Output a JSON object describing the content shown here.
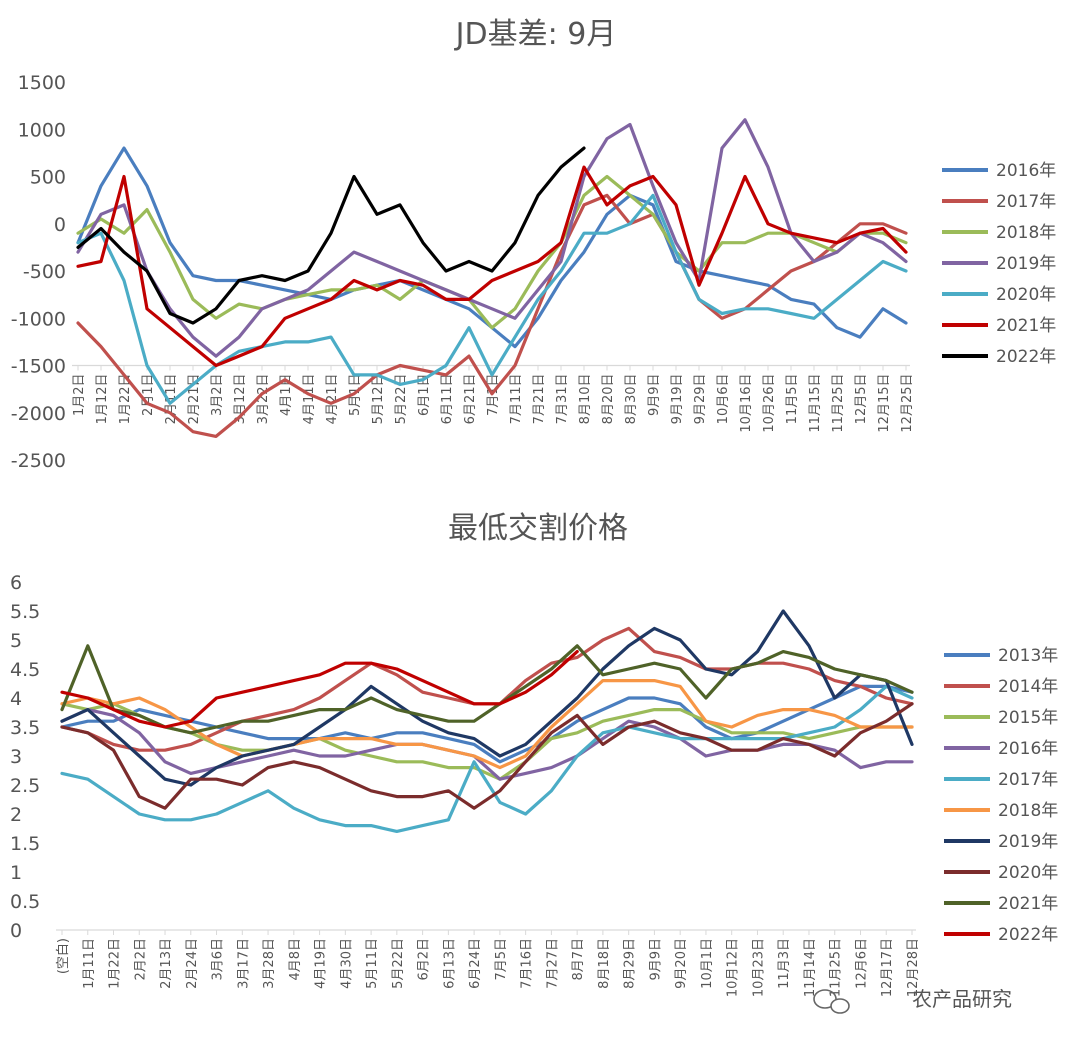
{
  "watermark": "农产品研究",
  "chart_data": [
    {
      "type": "line",
      "title": "JD基差: 9月",
      "xlabel": "",
      "ylabel": "",
      "ylim": [
        -2500,
        1500
      ],
      "yticks": [
        1500,
        1000,
        500,
        0,
        -500,
        -1000,
        -1500,
        -2000,
        -2500
      ],
      "baseline": -1500,
      "x_ticks": [
        "1月2日",
        "1月12日",
        "1月22日",
        "2月1日",
        "2月11日",
        "2月21日",
        "3月2日",
        "3月12日",
        "3月22日",
        "4月1日",
        "4月11日",
        "4月21日",
        "5月1日",
        "5月12日",
        "5月22日",
        "6月1日",
        "6月11日",
        "6月21日",
        "7月1日",
        "7月11日",
        "7月21日",
        "7月31日",
        "8月10日",
        "8月20日",
        "8月30日",
        "9月9日",
        "9月19日",
        "9月29日",
        "10月6日",
        "10月16日",
        "10月26日",
        "11月5日",
        "11月15日",
        "11月25日",
        "12月5日",
        "12月15日",
        "12月25日"
      ],
      "legend_position": "right",
      "series": [
        {
          "name": "2016年",
          "color": "#4a7ebf",
          "values": [
            -200,
            400,
            800,
            400,
            -200,
            -550,
            -600,
            -600,
            -650,
            -700,
            -750,
            -800,
            -700,
            -650,
            -600,
            -700,
            -800,
            -900,
            -1100,
            -1300,
            -1000,
            -600,
            -300,
            100,
            300,
            200,
            -400,
            -500,
            -550,
            -600,
            -650,
            -800,
            -850,
            -1100,
            -1200,
            -900,
            -1050
          ]
        },
        {
          "name": "2017年",
          "color": "#c0504d",
          "values": [
            -1050,
            -1300,
            -1600,
            -1900,
            -2000,
            -2200,
            -2250,
            -2050,
            -1800,
            -1650,
            -1800,
            -1900,
            -1800,
            -1600,
            -1500,
            -1550,
            -1600,
            -1400,
            -1800,
            -1500,
            -900,
            -300,
            200,
            300,
            0,
            100,
            -300,
            -800,
            -1000,
            -900,
            -700,
            -500,
            -400,
            -200,
            0,
            0,
            -100
          ]
        },
        {
          "name": "2018年",
          "color": "#9bbb59",
          "values": [
            -100,
            50,
            -100,
            150,
            -300,
            -800,
            -1000,
            -850,
            -900,
            -800,
            -750,
            -700,
            -700,
            -650,
            -800,
            -600,
            -700,
            -800,
            -1100,
            -900,
            -500,
            -200,
            300,
            500,
            300,
            100,
            -300,
            -500,
            -200,
            -200,
            -100,
            -100,
            -200,
            -300,
            -100,
            -100,
            -200
          ]
        },
        {
          "name": "2019年",
          "color": "#8064a2",
          "values": [
            -300,
            100,
            200,
            -500,
            -900,
            -1200,
            -1400,
            -1200,
            -900,
            -800,
            -700,
            -500,
            -300,
            -400,
            -500,
            -600,
            -700,
            -800,
            -900,
            -1000,
            -700,
            -400,
            500,
            900,
            1050,
            400,
            -200,
            -600,
            800,
            1100,
            600,
            -100,
            -400,
            -300,
            -100,
            -200,
            -400
          ]
        },
        {
          "name": "2020年",
          "color": "#4bacc6",
          "values": [
            -200,
            -100,
            -600,
            -1500,
            -1900,
            -1700,
            -1500,
            -1350,
            -1300,
            -1250,
            -1250,
            -1200,
            -1600,
            -1600,
            -1700,
            -1650,
            -1500,
            -1100,
            -1600,
            -1200,
            -800,
            -500,
            -100,
            -100,
            0,
            300,
            -300,
            -800,
            -950,
            -900,
            -900,
            -950,
            -1000,
            -800,
            -600,
            -400,
            -500
          ]
        },
        {
          "name": "2021年",
          "color": "#c00000",
          "values": [
            -450,
            -400,
            500,
            -900,
            -1100,
            -1300,
            -1500,
            -1400,
            -1300,
            -1000,
            -900,
            -800,
            -600,
            -700,
            -600,
            -650,
            -800,
            -800,
            -600,
            -500,
            -400,
            -200,
            600,
            200,
            400,
            500,
            200,
            -650,
            -100,
            500,
            0,
            -100,
            -150,
            -200,
            -100,
            -50,
            -300
          ]
        },
        {
          "name": "2022年",
          "color": "#000000",
          "values": [
            -250,
            -50,
            -300,
            -500,
            -950,
            -1050,
            -900,
            -600,
            -550,
            -600,
            -500,
            -100,
            500,
            100,
            200,
            -200,
            -500,
            -400,
            -500,
            -200,
            300,
            600,
            800
          ]
        }
      ]
    },
    {
      "type": "line",
      "title": "最低交割价格",
      "xlabel": "",
      "ylabel": "",
      "ylim": [
        0,
        6
      ],
      "yticks": [
        6,
        5.5,
        5,
        4.5,
        4,
        3.5,
        3,
        2.5,
        2,
        1.5,
        1,
        0.5,
        0
      ],
      "x_ticks": [
        "(空白)",
        "1月11日",
        "1月22日",
        "2月2日",
        "2月13日",
        "2月24日",
        "3月6日",
        "3月17日",
        "3月28日",
        "4月8日",
        "4月19日",
        "4月30日",
        "5月11日",
        "5月22日",
        "6月2日",
        "6月13日",
        "6月24日",
        "7月5日",
        "7月16日",
        "7月27日",
        "8月7日",
        "8月18日",
        "8月29日",
        "9月9日",
        "9月20日",
        "10月1日",
        "10月12日",
        "10月23日",
        "11月3日",
        "11月14日",
        "11月25日",
        "12月6日",
        "12月17日",
        "12月28日"
      ],
      "legend_position": "right",
      "series": [
        {
          "name": "2013年",
          "color": "#4a7ebf",
          "values": [
            3.5,
            3.6,
            3.6,
            3.8,
            3.7,
            3.6,
            3.5,
            3.4,
            3.3,
            3.3,
            3.3,
            3.4,
            3.3,
            3.4,
            3.4,
            3.3,
            3.2,
            2.9,
            3.1,
            3.3,
            3.6,
            3.8,
            4.0,
            4.0,
            3.9,
            3.5,
            3.3,
            3.4,
            3.6,
            3.8,
            4.0,
            4.2,
            4.2,
            4.1
          ]
        },
        {
          "name": "2014年",
          "color": "#c0504d",
          "values": [
            3.5,
            3.4,
            3.2,
            3.1,
            3.1,
            3.2,
            3.4,
            3.6,
            3.7,
            3.8,
            4.0,
            4.3,
            4.6,
            4.4,
            4.1,
            4.0,
            3.9,
            3.9,
            4.3,
            4.6,
            4.7,
            5.0,
            5.2,
            4.8,
            4.7,
            4.5,
            4.5,
            4.6,
            4.6,
            4.5,
            4.3,
            4.2,
            4.0,
            3.9
          ]
        },
        {
          "name": "2015年",
          "color": "#9bbb59",
          "values": [
            3.9,
            3.8,
            3.9,
            3.7,
            3.5,
            3.4,
            3.2,
            3.1,
            3.1,
            3.2,
            3.3,
            3.1,
            3.0,
            2.9,
            2.9,
            2.8,
            2.8,
            2.6,
            2.9,
            3.3,
            3.4,
            3.6,
            3.7,
            3.8,
            3.8,
            3.6,
            3.4,
            3.4,
            3.4,
            3.3,
            3.4,
            3.5,
            3.5,
            3.5
          ]
        },
        {
          "name": "2016年",
          "color": "#8064a2",
          "values": [
            3.6,
            3.8,
            3.7,
            3.4,
            2.9,
            2.7,
            2.8,
            2.9,
            3.0,
            3.1,
            3.0,
            3.0,
            3.1,
            3.2,
            3.2,
            3.1,
            3.0,
            2.6,
            2.7,
            2.8,
            3.0,
            3.3,
            3.6,
            3.5,
            3.3,
            3.0,
            3.1,
            3.1,
            3.2,
            3.2,
            3.1,
            2.8,
            2.9,
            2.9
          ]
        },
        {
          "name": "2017年",
          "color": "#4bacc6",
          "values": [
            2.7,
            2.6,
            2.3,
            2.0,
            1.9,
            1.9,
            2.0,
            2.2,
            2.4,
            2.1,
            1.9,
            1.8,
            1.8,
            1.7,
            1.8,
            1.9,
            2.9,
            2.2,
            2.0,
            2.4,
            3.0,
            3.4,
            3.5,
            3.4,
            3.3,
            3.3,
            3.3,
            3.3,
            3.3,
            3.4,
            3.5,
            3.8,
            4.2,
            4.0
          ]
        },
        {
          "name": "2018年",
          "color": "#f79646",
          "values": [
            3.9,
            4.0,
            3.9,
            4.0,
            3.8,
            3.5,
            3.2,
            3.0,
            3.1,
            3.2,
            3.3,
            3.3,
            3.3,
            3.2,
            3.2,
            3.1,
            3.0,
            2.8,
            3.0,
            3.5,
            3.9,
            4.3,
            4.3,
            4.3,
            4.2,
            3.6,
            3.5,
            3.7,
            3.8,
            3.8,
            3.7,
            3.5,
            3.5,
            3.5
          ]
        },
        {
          "name": "2019年",
          "color": "#1f3864",
          "values": [
            3.6,
            3.8,
            3.4,
            3.0,
            2.6,
            2.5,
            2.8,
            3.0,
            3.1,
            3.2,
            3.5,
            3.8,
            4.2,
            3.9,
            3.6,
            3.4,
            3.3,
            3.0,
            3.2,
            3.6,
            4.0,
            4.5,
            4.9,
            5.2,
            5.0,
            4.5,
            4.4,
            4.8,
            5.5,
            4.9,
            4.0,
            4.4,
            4.3,
            3.2
          ]
        },
        {
          "name": "2020年",
          "color": "#7b2c2c",
          "values": [
            3.5,
            3.4,
            3.1,
            2.3,
            2.1,
            2.6,
            2.6,
            2.5,
            2.8,
            2.9,
            2.8,
            2.6,
            2.4,
            2.3,
            2.3,
            2.4,
            2.1,
            2.4,
            2.9,
            3.4,
            3.7,
            3.2,
            3.5,
            3.6,
            3.4,
            3.3,
            3.1,
            3.1,
            3.3,
            3.2,
            3.0,
            3.4,
            3.6,
            3.9
          ]
        },
        {
          "name": "2021年",
          "color": "#4f6228",
          "values": [
            3.8,
            4.9,
            3.8,
            3.7,
            3.5,
            3.4,
            3.5,
            3.6,
            3.6,
            3.7,
            3.8,
            3.8,
            4.0,
            3.8,
            3.7,
            3.6,
            3.6,
            3.9,
            4.2,
            4.5,
            4.9,
            4.4,
            4.5,
            4.6,
            4.5,
            4.0,
            4.5,
            4.6,
            4.8,
            4.7,
            4.5,
            4.4,
            4.3,
            4.1
          ]
        },
        {
          "name": "2022年",
          "color": "#c00000",
          "values": [
            4.1,
            4.0,
            3.8,
            3.6,
            3.5,
            3.6,
            4.0,
            4.1,
            4.2,
            4.3,
            4.4,
            4.6,
            4.6,
            4.5,
            4.3,
            4.1,
            3.9,
            3.9,
            4.1,
            4.4,
            4.8
          ]
        }
      ]
    }
  ]
}
